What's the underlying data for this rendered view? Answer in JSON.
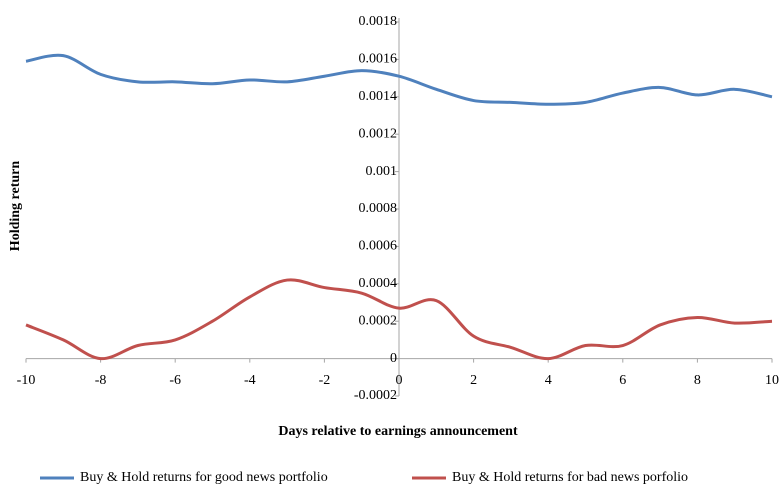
{
  "chart_data": {
    "type": "line",
    "x_label": "Days relative to earnings announcement",
    "y_label": "Holding  return",
    "x": [
      -10,
      -9,
      -8,
      -7,
      -6,
      -5,
      -4,
      -3,
      -2,
      -1,
      0,
      1,
      2,
      3,
      4,
      5,
      6,
      7,
      8,
      9,
      10
    ],
    "series": [
      {
        "name": "Buy & Hold returns for good news portfolio",
        "color": "#4f81bd",
        "values": [
          0.00159,
          0.00162,
          0.00152,
          0.00148,
          0.00148,
          0.00147,
          0.00149,
          0.00148,
          0.00151,
          0.00154,
          0.00151,
          0.00144,
          0.00138,
          0.00137,
          0.00136,
          0.00137,
          0.00142,
          0.00145,
          0.00141,
          0.00144,
          0.0014
        ]
      },
      {
        "name": "Buy & Hold returns for bad news porfolio",
        "color": "#c0504d",
        "values": [
          0.00018,
          0.0001,
          0,
          7e-05,
          0.0001,
          0.0002,
          0.00033,
          0.00042,
          0.00038,
          0.00035,
          0.00027,
          0.00031,
          0.00012,
          6e-05,
          0,
          7e-05,
          7e-05,
          0.00018,
          0.00022,
          0.00019,
          0.0002
        ]
      }
    ],
    "xlim": [
      -10,
      10
    ],
    "xticks": [
      -10,
      -8,
      -6,
      -4,
      -2,
      0,
      2,
      4,
      6,
      8,
      10
    ],
    "ylim": [
      -0.0002,
      0.0018
    ],
    "yticks": [
      -0.0002,
      0,
      0.0002,
      0.0004,
      0.0006,
      0.0008,
      0.001,
      0.0012,
      0.0014,
      0.0016,
      0.0018
    ],
    "legend": "bottom"
  }
}
